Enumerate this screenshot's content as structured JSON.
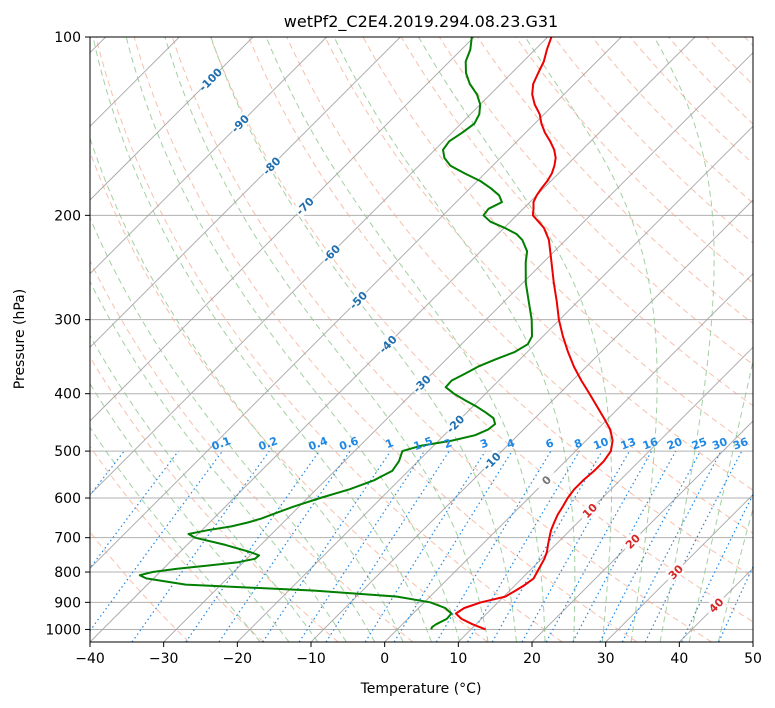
{
  "chart_data": {
    "type": "line",
    "subtype": "skew-t log-p",
    "title": "wetPf2_C2E4.2019.294.08.23.G31",
    "xlabel": "Temperature (°C)",
    "ylabel": "Pressure (hPa)",
    "xlim": [
      -40,
      50
    ],
    "ylim": [
      1050,
      100
    ],
    "y_scale": "log",
    "grid": true,
    "x_ticks": [
      -40,
      -30,
      -20,
      -10,
      0,
      10,
      20,
      30,
      40,
      50
    ],
    "y_ticks": [
      100,
      200,
      300,
      400,
      500,
      600,
      700,
      800,
      900,
      1000
    ],
    "colors": {
      "temperature": "#ee0000",
      "dewpoint": "#007f00",
      "isotherm": "#a0a0a0",
      "dry_adiabat": "#f4a58a",
      "moist_adiabat": "#8cc48c",
      "mixing_ratio": "#1e88e5",
      "frame": "#000000"
    },
    "isotherm_labels": [
      "-100",
      "-90",
      "-80",
      "-70",
      "-60",
      "-50",
      "-40",
      "-30",
      "-20",
      "-10",
      "0",
      "10",
      "20",
      "30",
      "40"
    ],
    "isotherm_label_values": [
      -100,
      -90,
      -80,
      -70,
      -60,
      -50,
      -40,
      -30,
      -20,
      -10,
      0,
      10,
      20,
      30,
      40
    ],
    "mixing_ratio_labels": [
      "0.1",
      "0.2",
      "0.4",
      "0.6",
      "1",
      "1.5",
      "2",
      "3",
      "4",
      "6",
      "8",
      "10",
      "13",
      "16",
      "20",
      "25",
      "30",
      "36"
    ],
    "mixing_ratio_values": [
      0.1,
      0.2,
      0.4,
      0.6,
      1,
      1.5,
      2,
      3,
      4,
      6,
      8,
      10,
      13,
      16,
      20,
      25,
      30,
      36
    ],
    "series": [
      {
        "values": [
          [
            1000,
            12
          ],
          [
            980,
            9.5
          ],
          [
            960,
            7.3
          ],
          [
            940,
            5.8
          ],
          [
            920,
            6.2
          ],
          [
            900,
            7.7
          ],
          [
            880,
            10.2
          ],
          [
            860,
            10.8
          ],
          [
            840,
            11.3
          ],
          [
            820,
            11.6
          ],
          [
            800,
            11.2
          ],
          [
            780,
            10.8
          ],
          [
            760,
            10.4
          ],
          [
            740,
            9.8
          ],
          [
            720,
            9.0
          ],
          [
            700,
            8.2
          ],
          [
            680,
            7.4
          ],
          [
            660,
            6.8
          ],
          [
            640,
            6.2
          ],
          [
            620,
            5.8
          ],
          [
            600,
            5.3
          ],
          [
            580,
            5.0
          ],
          [
            560,
            5.0
          ],
          [
            540,
            5.2
          ],
          [
            520,
            5.2
          ],
          [
            500,
            4.8
          ],
          [
            480,
            3.6
          ],
          [
            460,
            1.8
          ],
          [
            440,
            -0.6
          ],
          [
            420,
            -3.2
          ],
          [
            400,
            -5.9
          ],
          [
            380,
            -8.8
          ],
          [
            360,
            -11.7
          ],
          [
            340,
            -14.5
          ],
          [
            320,
            -17.3
          ],
          [
            300,
            -20.1
          ],
          [
            280,
            -22.8
          ],
          [
            260,
            -25.8
          ],
          [
            240,
            -28.9
          ],
          [
            220,
            -32.3
          ],
          [
            210,
            -34.6
          ],
          [
            200,
            -37.8
          ],
          [
            195,
            -38.6
          ],
          [
            190,
            -39.5
          ],
          [
            185,
            -40.0
          ],
          [
            180,
            -40.3
          ],
          [
            175,
            -40.5
          ],
          [
            170,
            -40.9
          ],
          [
            165,
            -41.6
          ],
          [
            160,
            -42.5
          ],
          [
            155,
            -43.8
          ],
          [
            150,
            -45.5
          ],
          [
            145,
            -47.4
          ],
          [
            140,
            -49.1
          ],
          [
            135,
            -50.6
          ],
          [
            130,
            -52.6
          ],
          [
            125,
            -54.3
          ],
          [
            120,
            -55.6
          ],
          [
            115,
            -56.4
          ],
          [
            110,
            -57.2
          ],
          [
            105,
            -58.4
          ],
          [
            100,
            -59.5
          ]
        ]
      },
      {
        "values": [
          [
            1000,
            4.6
          ],
          [
            990,
            4.4
          ],
          [
            980,
            4.6
          ],
          [
            960,
            5.3
          ],
          [
            940,
            5.2
          ],
          [
            920,
            3.6
          ],
          [
            900,
            0.8
          ],
          [
            880,
            -4.5
          ],
          [
            860,
            -16.5
          ],
          [
            840,
            -34.8
          ],
          [
            820,
            -41.0
          ],
          [
            810,
            -42.3
          ],
          [
            800,
            -41.0
          ],
          [
            790,
            -38.1
          ],
          [
            780,
            -34.3
          ],
          [
            770,
            -30.7
          ],
          [
            760,
            -28.9
          ],
          [
            750,
            -28.8
          ],
          [
            740,
            -30.5
          ],
          [
            720,
            -34.8
          ],
          [
            700,
            -39.9
          ],
          [
            690,
            -41.3
          ],
          [
            680,
            -39.2
          ],
          [
            670,
            -36.5
          ],
          [
            660,
            -34.8
          ],
          [
            650,
            -33.5
          ],
          [
            640,
            -32.6
          ],
          [
            620,
            -30.7
          ],
          [
            600,
            -28.3
          ],
          [
            580,
            -25.5
          ],
          [
            560,
            -23.4
          ],
          [
            540,
            -22.2
          ],
          [
            520,
            -22.6
          ],
          [
            500,
            -23.5
          ],
          [
            490,
            -21.8
          ],
          [
            480,
            -18.2
          ],
          [
            470,
            -15.8
          ],
          [
            460,
            -14.8
          ],
          [
            450,
            -14.6
          ],
          [
            440,
            -15.6
          ],
          [
            430,
            -17.5
          ],
          [
            420,
            -19.6
          ],
          [
            410,
            -22.0
          ],
          [
            400,
            -24.3
          ],
          [
            390,
            -26.3
          ],
          [
            380,
            -26.4
          ],
          [
            370,
            -25.5
          ],
          [
            360,
            -24.7
          ],
          [
            350,
            -23.3
          ],
          [
            340,
            -21.7
          ],
          [
            330,
            -21.0
          ],
          [
            320,
            -21.5
          ],
          [
            300,
            -23.8
          ],
          [
            280,
            -26.6
          ],
          [
            260,
            -29.6
          ],
          [
            240,
            -32.4
          ],
          [
            230,
            -33.7
          ],
          [
            220,
            -35.9
          ],
          [
            215,
            -37.5
          ],
          [
            210,
            -39.9
          ],
          [
            205,
            -42.7
          ],
          [
            200,
            -44.5
          ],
          [
            195,
            -44.7
          ],
          [
            190,
            -43.8
          ],
          [
            185,
            -45.1
          ],
          [
            180,
            -47.2
          ],
          [
            175,
            -49.6
          ],
          [
            170,
            -52.7
          ],
          [
            165,
            -55.7
          ],
          [
            160,
            -57.6
          ],
          [
            155,
            -58.9
          ],
          [
            150,
            -59.2
          ],
          [
            145,
            -58.6
          ],
          [
            140,
            -58.2
          ],
          [
            135,
            -58.8
          ],
          [
            130,
            -60.0
          ],
          [
            125,
            -61.8
          ],
          [
            120,
            -64.2
          ],
          [
            115,
            -66.2
          ],
          [
            110,
            -67.8
          ],
          [
            105,
            -68.8
          ],
          [
            100,
            -70.3
          ]
        ]
      }
    ]
  }
}
